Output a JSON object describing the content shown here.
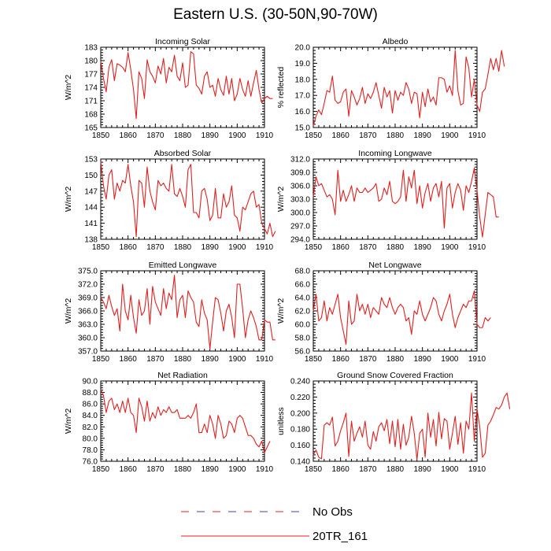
{
  "title": "Eastern U.S. (30-50N,90-70W)",
  "legend": [
    {
      "label": "No Obs",
      "color": "#4b3fb0",
      "secondary_color": "#e02020",
      "style": "dashed"
    },
    {
      "label": "20TR_161",
      "color": "#e02020",
      "style": "solid"
    }
  ],
  "chart_data": [
    {
      "type": "line",
      "title": "Incoming Solar",
      "ylabel": "W/m^2",
      "xlim": [
        1850,
        1910
      ],
      "ylim": [
        165,
        183
      ],
      "x_ticks": [
        1850,
        1860,
        1870,
        1880,
        1890,
        1900,
        1910
      ],
      "y_ticks": [
        "165",
        "168",
        "171",
        "174",
        "177",
        "180",
        "183"
      ],
      "x_start": 1850,
      "values": [
        179.8,
        176.0,
        173.0,
        178.5,
        180.2,
        175.5,
        179.3,
        179.0,
        178.5,
        177.5,
        181.8,
        178.0,
        173.5,
        167.0,
        177.5,
        176.0,
        171.5,
        180.2,
        177.5,
        176.5,
        175.0,
        178.8,
        177.0,
        180.5,
        175.0,
        178.5,
        177.5,
        181.2,
        176.5,
        175.5,
        179.5,
        174.0,
        174.5,
        182.0,
        181.5,
        174.5,
        173.8,
        172.5,
        176.5,
        177.5,
        174.0,
        174.5,
        172.0,
        176.0,
        173.5,
        172.2,
        176.5,
        172.5,
        176.0,
        171.0,
        172.5,
        176.0,
        173.5,
        172.0,
        175.5,
        172.0,
        175.0,
        177.8,
        173.5,
        170.5,
        171.5,
        172.0,
        171.5,
        171.5
      ]
    },
    {
      "type": "line",
      "title": "Albedo",
      "ylabel": "% reflected",
      "xlim": [
        1850,
        1910
      ],
      "ylim": [
        15,
        20
      ],
      "x_ticks": [
        1850,
        1860,
        1870,
        1880,
        1890,
        1900,
        1910
      ],
      "y_ticks": [
        "15.0",
        "16.0",
        "17.0",
        "18.0",
        "19.0",
        "20.0"
      ],
      "x_start": 1850,
      "values": [
        15.1,
        15.7,
        16.1,
        15.8,
        16.5,
        17.3,
        17.2,
        18.2,
        16.7,
        16.5,
        16.6,
        17.2,
        17.4,
        15.7,
        17.3,
        16.9,
        16.4,
        16.8,
        17.5,
        16.5,
        17.1,
        16.8,
        17.2,
        17.8,
        17.0,
        16.2,
        17.5,
        16.9,
        17.3,
        15.9,
        17.3,
        16.7,
        17.2,
        17.0,
        17.8,
        17.4,
        16.5,
        17.2,
        17.1,
        15.6,
        17.2,
        16.3,
        17.4,
        16.6,
        16.9,
        16.4,
        18.1,
        18.1,
        18.0,
        17.2,
        17.6,
        17.0,
        19.8,
        17.3,
        16.4,
        16.5,
        19.4,
        18.7,
        16.9,
        18.0,
        16.4,
        16.0,
        17.2,
        17.4,
        18.3,
        19.3,
        18.6,
        19.3,
        18.5,
        19.8,
        18.8
      ]
    },
    {
      "type": "line",
      "title": "Absorbed Solar",
      "ylabel": "W/m^2",
      "xlim": [
        1850,
        1910
      ],
      "ylim": [
        138,
        153
      ],
      "x_ticks": [
        1850,
        1860,
        1870,
        1880,
        1890,
        1900,
        1910
      ],
      "y_ticks": [
        "138",
        "141",
        "144",
        "147",
        "150",
        "153"
      ],
      "x_start": 1850,
      "values": [
        152.5,
        148.0,
        145.5,
        150.0,
        151.0,
        145.5,
        148.5,
        147.0,
        149.0,
        148.5,
        152.0,
        148.0,
        145.0,
        138.5,
        149.0,
        148.5,
        144.0,
        151.5,
        147.0,
        145.0,
        143.5,
        149.0,
        148.0,
        148.5,
        147.5,
        147.0,
        152.0,
        146.5,
        146.0,
        147.5,
        146.0,
        144.0,
        151.0,
        152.0,
        143.0,
        143.0,
        142.0,
        147.0,
        147.5,
        145.5,
        141.5,
        142.5,
        147.5,
        142.0,
        142.0,
        146.5,
        144.0,
        145.0,
        148.0,
        142.5,
        142.0,
        139.5,
        144.0,
        143.5,
        145.0,
        146.5,
        147.0,
        144.0,
        144.5,
        141.0,
        140.0,
        139.0,
        141.0,
        138.5,
        139.5
      ]
    },
    {
      "type": "line",
      "title": "Incoming Longwave",
      "ylabel": "W/m^2",
      "xlim": [
        1850,
        1910
      ],
      "ylim": [
        294,
        312
      ],
      "x_ticks": [
        1850,
        1860,
        1870,
        1880,
        1890,
        1900,
        1910
      ],
      "y_ticks": [
        "294.0",
        "297.0",
        "300.0",
        "303.0",
        "306.0",
        "309.0",
        "312.0"
      ],
      "x_start": 1850,
      "values": [
        303.5,
        308.0,
        306.0,
        306.5,
        305.0,
        303.5,
        304.0,
        303.0,
        299.5,
        309.5,
        302.5,
        305.0,
        302.5,
        304.0,
        306.0,
        302.5,
        305.5,
        304.5,
        304.5,
        305.5,
        304.5,
        305.0,
        305.5,
        306.5,
        302.5,
        303.0,
        305.5,
        304.0,
        307.0,
        302.5,
        302.0,
        302.5,
        303.5,
        309.5,
        302.5,
        308.0,
        305.5,
        309.5,
        302.0,
        306.0,
        301.0,
        304.5,
        306.5,
        302.5,
        305.5,
        306.5,
        303.5,
        307.0,
        296.5,
        305.5,
        306.5,
        301.0,
        304.5,
        306.5,
        305.0,
        300.5,
        306.0,
        304.5,
        307.0,
        310.0,
        305.0,
        299.0,
        294.5,
        299.5,
        304.5,
        304.0,
        303.5,
        299.0,
        299.0
      ]
    },
    {
      "type": "line",
      "title": "Emitted Longwave",
      "ylabel": "W/m^2",
      "xlim": [
        1850,
        1910
      ],
      "ylim": [
        357,
        375
      ],
      "x_ticks": [
        1850,
        1860,
        1870,
        1880,
        1890,
        1900,
        1910
      ],
      "y_ticks": [
        "357.0",
        "360.0",
        "363.0",
        "366.0",
        "369.0",
        "372.0",
        "375.0"
      ],
      "x_start": 1850,
      "values": [
        369.0,
        368.0,
        366.5,
        369.5,
        367.0,
        365.0,
        366.5,
        361.5,
        372.0,
        366.0,
        364.0,
        369.5,
        364.5,
        361.0,
        368.5,
        365.0,
        366.0,
        371.0,
        363.0,
        371.5,
        368.0,
        366.5,
        365.0,
        371.0,
        366.5,
        370.0,
        368.5,
        374.0,
        364.5,
        368.5,
        369.5,
        364.5,
        370.5,
        369.0,
        368.0,
        363.5,
        362.5,
        368.5,
        365.5,
        364.0,
        357.5,
        363.5,
        369.0,
        368.5,
        365.5,
        361.5,
        366.0,
        367.5,
        364.5,
        360.0,
        372.0,
        372.0,
        366.5,
        360.0,
        364.0,
        366.0,
        364.5,
        362.5,
        359.5,
        359.5,
        364.0,
        363.5,
        363.5,
        359.5,
        359.5
      ]
    },
    {
      "type": "line",
      "title": "Net Longwave",
      "ylabel": "W/m^2",
      "xlim": [
        1850,
        1910
      ],
      "ylim": [
        56,
        68
      ],
      "x_ticks": [
        1850,
        1860,
        1870,
        1880,
        1890,
        1900,
        1910
      ],
      "y_ticks": [
        "56.0",
        "58.0",
        "60.0",
        "62.0",
        "64.0",
        "66.0",
        "68.0"
      ],
      "x_start": 1850,
      "values": [
        62.0,
        64.5,
        60.5,
        61.0,
        63.5,
        60.5,
        62.5,
        61.5,
        63.0,
        64.5,
        61.0,
        59.0,
        57.0,
        63.5,
        60.0,
        60.5,
        64.5,
        62.0,
        63.0,
        61.5,
        63.0,
        61.0,
        62.5,
        62.0,
        61.5,
        64.0,
        63.0,
        62.5,
        64.0,
        62.5,
        61.5,
        62.5,
        63.0,
        62.5,
        60.5,
        61.0,
        58.5,
        62.0,
        61.5,
        63.5,
        61.5,
        60.5,
        61.5,
        62.5,
        64.0,
        63.5,
        61.5,
        60.5,
        62.0,
        63.0,
        64.5,
        61.5,
        59.5,
        61.0,
        62.0,
        63.0,
        62.5,
        63.5,
        63.5,
        65.0,
        60.0,
        59.5,
        59.5,
        61.0,
        60.5,
        61.0
      ]
    },
    {
      "type": "line",
      "title": "Net Radiation",
      "ylabel": "W/m^2",
      "xlim": [
        1850,
        1910
      ],
      "ylim": [
        76,
        90
      ],
      "x_ticks": [
        1850,
        1860,
        1870,
        1880,
        1890,
        1900,
        1910
      ],
      "y_ticks": [
        "76.0",
        "78.0",
        "80.0",
        "82.0",
        "84.0",
        "86.0",
        "88.0",
        "90.0"
      ],
      "x_start": 1850,
      "values": [
        88.5,
        87.5,
        84.5,
        86.5,
        87.0,
        85.0,
        86.0,
        84.5,
        86.5,
        84.5,
        87.0,
        84.5,
        84.0,
        81.0,
        87.0,
        85.5,
        83.0,
        86.5,
        83.0,
        84.5,
        83.5,
        85.5,
        84.0,
        85.0,
        84.5,
        85.5,
        84.5,
        84.5,
        85.0,
        83.5,
        83.5,
        83.5,
        84.0,
        83.5,
        84.5,
        86.0,
        81.0,
        81.0,
        82.5,
        81.0,
        84.0,
        82.5,
        80.0,
        84.0,
        82.5,
        80.0,
        80.5,
        83.0,
        82.5,
        81.0,
        83.5,
        84.0,
        83.5,
        82.0,
        80.5,
        80.5,
        80.0,
        79.0,
        78.5,
        79.5,
        77.5,
        78.5,
        79.5
      ]
    },
    {
      "type": "line",
      "title": "Ground Snow Covered Fraction",
      "ylabel": "unitless",
      "xlim": [
        1850,
        1910
      ],
      "ylim": [
        0.14,
        0.24
      ],
      "x_ticks": [
        1850,
        1860,
        1870,
        1880,
        1890,
        1900,
        1910
      ],
      "y_ticks": [
        "0.140",
        "0.160",
        "0.180",
        "0.200",
        "0.220",
        "0.240"
      ],
      "x_start": 1850,
      "values": [
        0.148,
        0.154,
        0.145,
        0.143,
        0.185,
        0.188,
        0.185,
        0.195,
        0.159,
        0.165,
        0.178,
        0.188,
        0.2,
        0.146,
        0.19,
        0.165,
        0.175,
        0.183,
        0.17,
        0.19,
        0.16,
        0.155,
        0.177,
        0.165,
        0.183,
        0.188,
        0.178,
        0.192,
        0.162,
        0.19,
        0.158,
        0.192,
        0.155,
        0.186,
        0.16,
        0.17,
        0.196,
        0.175,
        0.142,
        0.175,
        0.18,
        0.145,
        0.2,
        0.17,
        0.192,
        0.159,
        0.201,
        0.168,
        0.193,
        0.19,
        0.155,
        0.175,
        0.196,
        0.161,
        0.188,
        0.15,
        0.19,
        0.18,
        0.225,
        0.165,
        0.205,
        0.183,
        0.145,
        0.15,
        0.185,
        0.19,
        0.198,
        0.207,
        0.205,
        0.21,
        0.22,
        0.225,
        0.205
      ]
    }
  ]
}
